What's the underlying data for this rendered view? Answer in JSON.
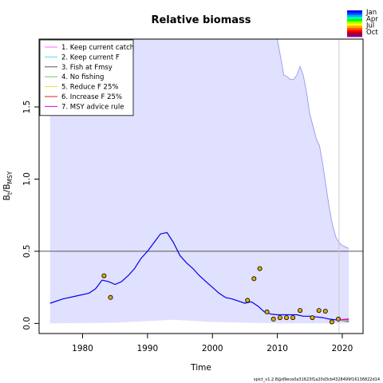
{
  "chart_data": {
    "type": "line",
    "title": "Relative biomass",
    "xlabel": "Time",
    "ylabel_main": "B",
    "ylabel_sub1": "t",
    "ylabel_mid": "/B",
    "ylabel_sub2": "MSY",
    "xlim": [
      1973.3,
      2023.2
    ],
    "ylim": [
      -0.07,
      1.97
    ],
    "x_ticks": [
      1980,
      1990,
      2000,
      2010,
      2020
    ],
    "x_tick_labels": [
      "1980",
      "1990",
      "2000",
      "2010",
      "2020"
    ],
    "y_ticks": [
      0.0,
      0.5,
      1.0,
      1.5
    ],
    "y_tick_labels": [
      "0.0",
      "0.5",
      "1.0",
      "1.5"
    ],
    "reference_line_y": 0.5,
    "vertical_line_x": 2019.5,
    "grid": false,
    "legend_position": "top-left",
    "legend": [
      {
        "label": "1. Keep current catch",
        "color": "#ff66ff"
      },
      {
        "label": "2. Keep current F",
        "color": "#55ddee"
      },
      {
        "label": "3. Fish at Fmsy",
        "color": "#555555"
      },
      {
        "label": "4. No fishing",
        "color": "#66cc66"
      },
      {
        "label": "5. Reduce F 25%",
        "color": "#eedd44"
      },
      {
        "label": "6. Increase F 25%",
        "color": "#dd2222"
      },
      {
        "label": "7. MSY advice rule",
        "color": "#dd00dd"
      }
    ],
    "season_legend": [
      "Jan",
      "Apr",
      "Jul",
      "Oct"
    ],
    "season_colors": [
      "#0000ff",
      "#0044ff",
      "#00aaff",
      "#00ffaa",
      "#00ff00",
      "#aaff00",
      "#ffff00",
      "#ffaa00",
      "#ff5500",
      "#ff0000",
      "#aa0022",
      "#880088"
    ],
    "colors": {
      "line": "#0000ee",
      "ci_fill": "#e0e0ff",
      "ci_edge": "#9999ee",
      "points": "#ddaa00",
      "ref_line": "#555555",
      "vline": "#cccccc"
    },
    "series": [
      {
        "name": "B/Bmsy estimate",
        "x": [
          1975,
          1977,
          1979,
          1981,
          1982,
          1983,
          1984,
          1985,
          1986,
          1987,
          1988,
          1989,
          1990,
          1991,
          1992,
          1993,
          1994,
          1995,
          1996,
          1997,
          1998,
          1999,
          2000,
          2001,
          2002,
          2003,
          2004,
          2005,
          2006,
          2007,
          2008,
          2009,
          2010,
          2011,
          2012,
          2013,
          2014,
          2015,
          2016,
          2017,
          2018,
          2019,
          2020,
          2021
        ],
        "y": [
          0.14,
          0.17,
          0.19,
          0.21,
          0.24,
          0.3,
          0.29,
          0.27,
          0.29,
          0.33,
          0.38,
          0.45,
          0.5,
          0.56,
          0.62,
          0.63,
          0.56,
          0.47,
          0.42,
          0.38,
          0.33,
          0.29,
          0.25,
          0.21,
          0.18,
          0.17,
          0.155,
          0.14,
          0.15,
          0.12,
          0.08,
          0.065,
          0.06,
          0.06,
          0.06,
          0.06,
          0.05,
          0.05,
          0.045,
          0.04,
          0.03,
          0.025,
          0.02,
          0.02
        ]
      },
      {
        "name": "upper CI",
        "x": [
          1975,
          2010,
          2011,
          2011.5,
          2012,
          2012.5,
          2013,
          2013.5,
          2014,
          2014.5,
          2015,
          2016,
          2016.5,
          2017,
          2017.5,
          2018,
          2018.5,
          2019,
          2019.5,
          2020,
          2021
        ],
        "y": [
          1.97,
          1.97,
          1.72,
          1.71,
          1.69,
          1.69,
          1.72,
          1.78,
          1.72,
          1.6,
          1.45,
          1.28,
          1.23,
          1.1,
          0.95,
          0.8,
          0.68,
          0.6,
          0.56,
          0.54,
          0.52
        ]
      },
      {
        "name": "lower CI",
        "x": [
          1975,
          1985,
          1994,
          2000,
          2005,
          2010,
          2015,
          2019,
          2021
        ],
        "y": [
          0.0,
          0.005,
          0.025,
          0.01,
          0.005,
          0.0,
          0.0,
          0.0,
          0.0
        ]
      },
      {
        "name": "observed index",
        "x": [
          1983.3,
          1984.3,
          2005.4,
          2006.4,
          2007.3,
          2008.4,
          2009.4,
          2010.4,
          2011.4,
          2012.4,
          2013.5,
          2015.4,
          2016.4,
          2017.4,
          2018.4,
          2019.4
        ],
        "y": [
          0.33,
          0.18,
          0.16,
          0.31,
          0.38,
          0.08,
          0.03,
          0.04,
          0.04,
          0.04,
          0.09,
          0.04,
          0.09,
          0.085,
          0.01,
          0.03
        ]
      }
    ],
    "footer": "spict_v1.2.8@d9ece0a31623f1a20d3cb4328499f16136822d14"
  }
}
